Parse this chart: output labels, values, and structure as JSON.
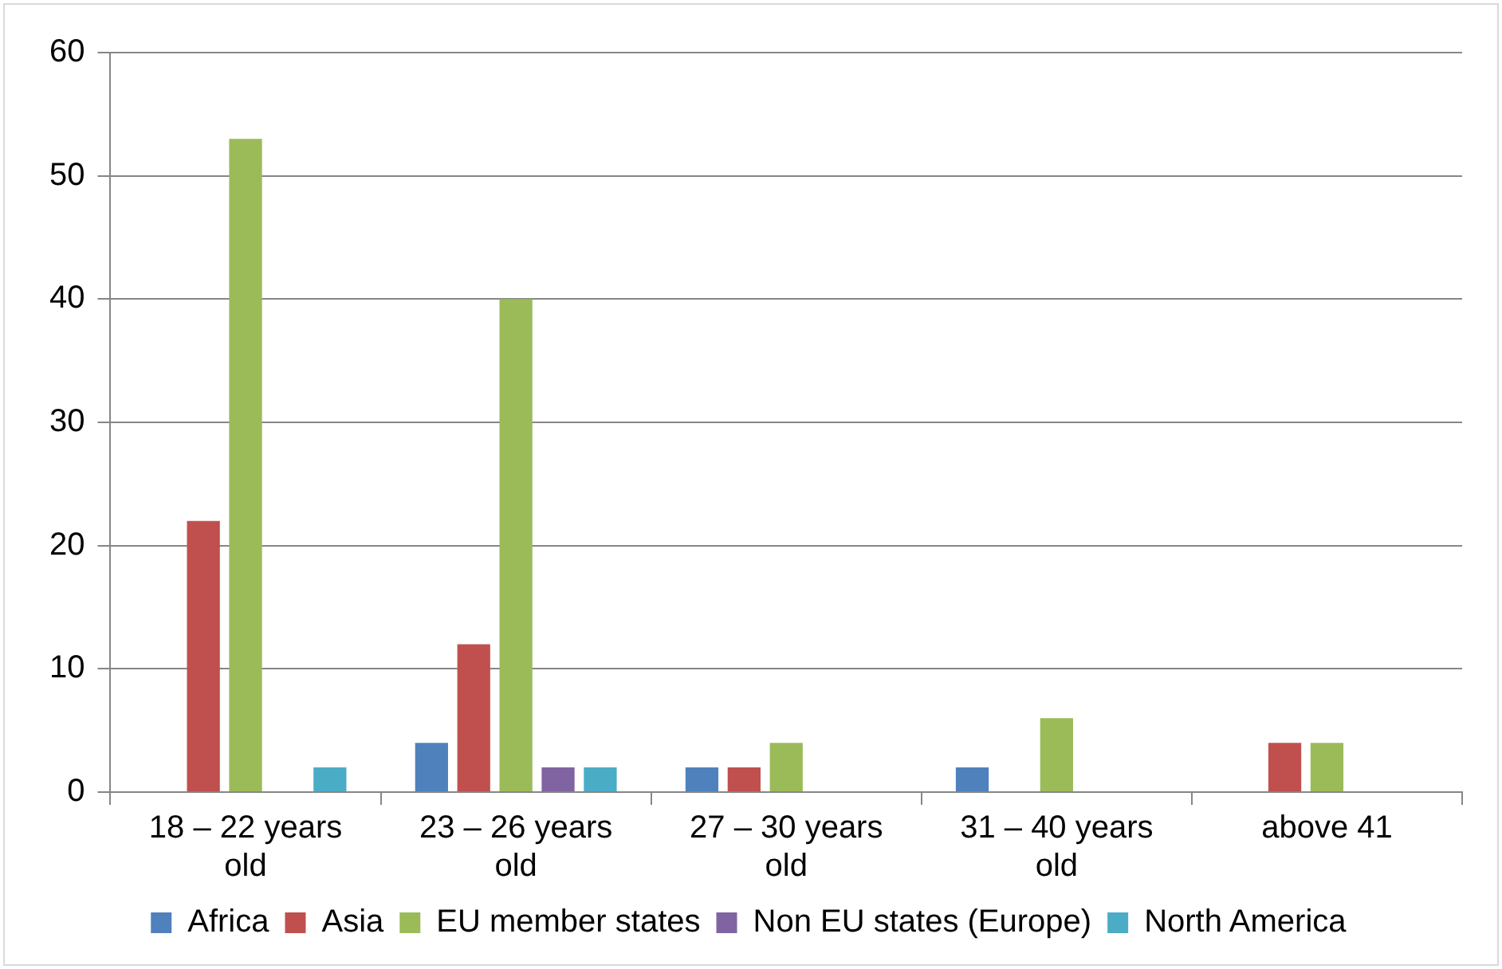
{
  "chart_data": {
    "type": "bar",
    "categories": [
      "18 – 22 years old",
      "23 – 26 years old",
      "27 – 30 years old",
      "31 – 40 years old",
      "above 41"
    ],
    "series": [
      {
        "name": "Africa",
        "color": "#4f81bd",
        "values": [
          0,
          4,
          2,
          2,
          0
        ]
      },
      {
        "name": "Asia",
        "color": "#c0504d",
        "values": [
          22,
          12,
          2,
          0,
          4
        ]
      },
      {
        "name": "EU member states",
        "color": "#9bbb59",
        "values": [
          53,
          40,
          4,
          6,
          4
        ]
      },
      {
        "name": "Non EU states (Europe)",
        "color": "#8064a2",
        "values": [
          0,
          2,
          0,
          0,
          0
        ]
      },
      {
        "name": "North America",
        "color": "#4bacc6",
        "values": [
          2,
          2,
          0,
          0,
          0
        ]
      }
    ],
    "ylim": [
      0,
      60
    ],
    "yticks": [
      0,
      10,
      20,
      30,
      40,
      50,
      60
    ],
    "grid": "y",
    "legend": "bottom"
  }
}
